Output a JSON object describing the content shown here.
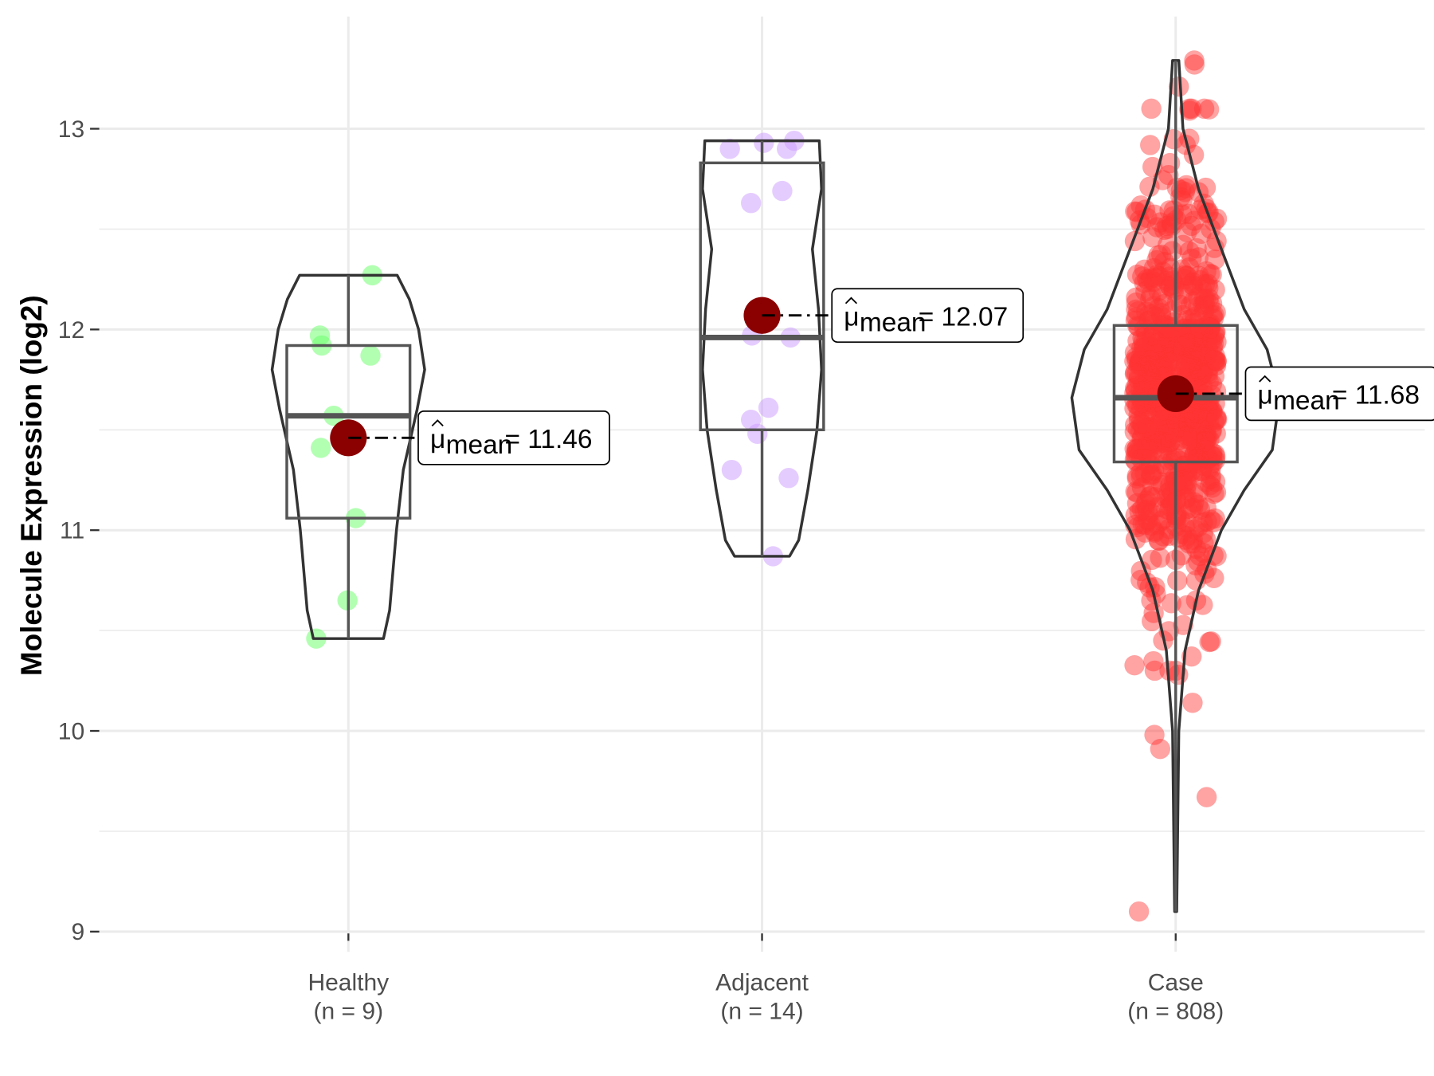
{
  "chart_data": {
    "type": "violin-box",
    "ylabel": "Molecule Expression (log2)",
    "xlabel": "",
    "ylim": [
      8.85,
      13.5
    ],
    "yticks": [
      9,
      10,
      11,
      12,
      13
    ],
    "grid": true,
    "mean_label_prefix": "μ",
    "mean_label_sub": "mean",
    "groups": [
      {
        "name": "Healthy",
        "n_label": "(n = 9)",
        "n": 9,
        "color": "#66ff66",
        "min": 10.46,
        "q1": 11.06,
        "median": 11.57,
        "q3": 11.92,
        "max": 12.27,
        "mean": 11.46,
        "mean_text": "= 11.46",
        "points": [
          12.27,
          11.97,
          11.92,
          11.87,
          11.57,
          11.41,
          11.06,
          10.65,
          10.46
        ],
        "density": [
          [
            10.46,
            0.46
          ],
          [
            10.6,
            0.54
          ],
          [
            11.0,
            0.63
          ],
          [
            11.3,
            0.72
          ],
          [
            11.6,
            0.9
          ],
          [
            11.8,
            1.0
          ],
          [
            12.0,
            0.92
          ],
          [
            12.15,
            0.8
          ],
          [
            12.27,
            0.64
          ]
        ]
      },
      {
        "name": "Adjacent",
        "n_label": "(n = 14)",
        "n": 14,
        "color": "#cc99ff",
        "min": 10.87,
        "q1": 11.5,
        "median": 11.96,
        "q3": 12.83,
        "max": 12.94,
        "mean": 12.07,
        "mean_text": "= 12.07",
        "points": [
          12.9,
          12.93,
          12.9,
          12.94,
          12.63,
          12.69,
          11.97,
          11.96,
          11.61,
          11.55,
          11.48,
          11.3,
          11.26,
          10.87
        ],
        "density": [
          [
            10.87,
            0.36
          ],
          [
            10.95,
            0.48
          ],
          [
            11.2,
            0.6
          ],
          [
            11.5,
            0.72
          ],
          [
            11.8,
            0.78
          ],
          [
            12.1,
            0.74
          ],
          [
            12.4,
            0.66
          ],
          [
            12.7,
            0.78
          ],
          [
            12.94,
            0.75
          ]
        ]
      },
      {
        "name": "Case",
        "n_label": "(n = 808)",
        "n": 808,
        "color": "#ff3333",
        "min": 9.1,
        "q1": 11.34,
        "median": 11.66,
        "q3": 12.02,
        "max": 13.34,
        "mean": 11.68,
        "mean_text": "= 11.68",
        "sd": 0.5,
        "points": [
          9.1,
          9.67,
          9.91,
          9.98,
          10.14,
          10.28,
          10.45,
          13.34,
          13.32,
          13.21,
          12.95,
          12.92
        ],
        "density": [
          [
            9.1,
            0.01
          ],
          [
            10.0,
            0.03
          ],
          [
            10.4,
            0.09
          ],
          [
            10.7,
            0.22
          ],
          [
            11.0,
            0.44
          ],
          [
            11.2,
            0.66
          ],
          [
            11.4,
            0.93
          ],
          [
            11.66,
            1.0
          ],
          [
            11.9,
            0.88
          ],
          [
            12.1,
            0.66
          ],
          [
            12.4,
            0.44
          ],
          [
            12.7,
            0.22
          ],
          [
            13.0,
            0.07
          ],
          [
            13.34,
            0.03
          ]
        ]
      }
    ]
  }
}
